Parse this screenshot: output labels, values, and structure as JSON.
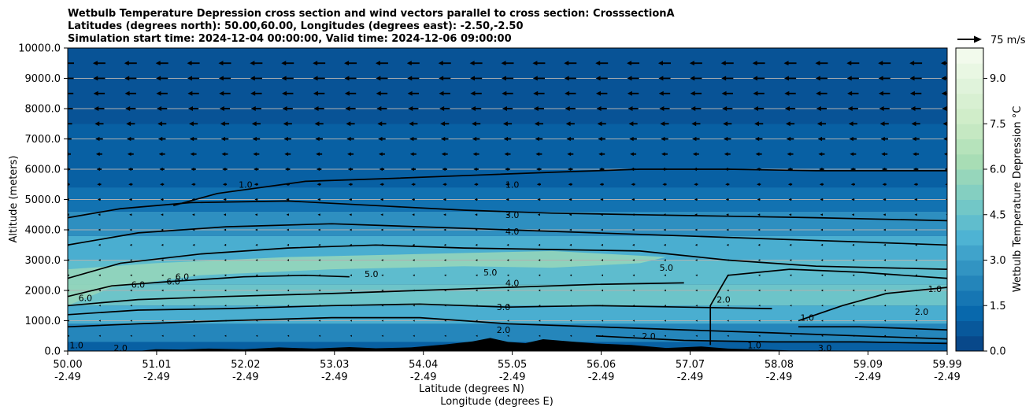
{
  "chart_data": {
    "type": "contour",
    "title_lines": [
      "Wetbulb Temperature Depression cross section and wind vectors parallel to cross section: CrosssectionA",
      "Latitudes (degrees north): 50.00,60.00, Longitudes (degrees east): -2.50,-2.50",
      "Simulation start time: 2024-12-04 00:00:00, Valid time: 2024-12-06 09:00:00"
    ],
    "xlabel_lat": "Latitude (degrees N)",
    "xlabel_lon": "Longitude (degrees E)",
    "ylabel": "Altitude (meters)",
    "xlim": [
      50.0,
      59.99
    ],
    "ylim": [
      0,
      10000
    ],
    "x_ticks": [
      {
        "lat": "50.00",
        "lon": "-2.49",
        "value": 50.0
      },
      {
        "lat": "51.01",
        "lon": "-2.49",
        "value": 51.01
      },
      {
        "lat": "52.02",
        "lon": "-2.49",
        "value": 52.02
      },
      {
        "lat": "53.03",
        "lon": "-2.49",
        "value": 53.03
      },
      {
        "lat": "54.04",
        "lon": "-2.49",
        "value": 54.04
      },
      {
        "lat": "55.05",
        "lon": "-2.49",
        "value": 55.05
      },
      {
        "lat": "56.06",
        "lon": "-2.49",
        "value": 56.06
      },
      {
        "lat": "57.07",
        "lon": "-2.49",
        "value": 57.07
      },
      {
        "lat": "58.08",
        "lon": "-2.49",
        "value": 58.08
      },
      {
        "lat": "59.09",
        "lon": "-2.49",
        "value": 59.09
      },
      {
        "lat": "59.99",
        "lon": "-2.49",
        "value": 59.99
      }
    ],
    "y_ticks": [
      {
        "label": "0.0",
        "value": 0
      },
      {
        "label": "1000.0",
        "value": 1000
      },
      {
        "label": "2000.0",
        "value": 2000
      },
      {
        "label": "3000.0",
        "value": 3000
      },
      {
        "label": "4000.0",
        "value": 4000
      },
      {
        "label": "5000.0",
        "value": 5000
      },
      {
        "label": "6000.0",
        "value": 6000
      },
      {
        "label": "7000.0",
        "value": 7000
      },
      {
        "label": "8000.0",
        "value": 8000
      },
      {
        "label": "9000.0",
        "value": 9000
      },
      {
        "label": "10000.0",
        "value": 10000
      }
    ],
    "grid": "horizontal",
    "colorbar": {
      "label": "Wetbulb Temperature Depression °C",
      "min": 0.0,
      "max": 10.0,
      "tick_labels": [
        "0.0",
        "1.5",
        "3.0",
        "4.5",
        "6.0",
        "7.5",
        "9.0"
      ],
      "tick_values": [
        0.0,
        1.5,
        3.0,
        4.5,
        6.0,
        7.5,
        9.0
      ],
      "colormap": "GnBu_r",
      "color_stops": [
        "#084081",
        "#0868ac",
        "#2b8cbe",
        "#4eb3d3",
        "#7bccc4",
        "#a8ddb5",
        "#ccebc5",
        "#e0f3db",
        "#f7fcf0"
      ]
    },
    "wind_key": {
      "label": "75 m/s",
      "value": 75
    },
    "wind_direction": "toward lower latitude (southward, parallel to section)",
    "wind_rows": [
      {
        "altitude": 9500,
        "speed": 40
      },
      {
        "altitude": 9000,
        "speed": 38
      },
      {
        "altitude": 8500,
        "speed": 36
      },
      {
        "altitude": 8000,
        "speed": 33
      },
      {
        "altitude": 7500,
        "speed": 28
      },
      {
        "altitude": 7000,
        "speed": 24
      },
      {
        "altitude": 6500,
        "speed": 20
      },
      {
        "altitude": 6000,
        "speed": 16
      },
      {
        "altitude": 5500,
        "speed": 13
      },
      {
        "altitude": 5000,
        "speed": 10
      },
      {
        "altitude": 4500,
        "speed": 8
      },
      {
        "altitude": 4000,
        "speed": 6
      },
      {
        "altitude": 3500,
        "speed": 5
      },
      {
        "altitude": 3000,
        "speed": 4
      },
      {
        "altitude": 2500,
        "speed": 3
      },
      {
        "altitude": 2000,
        "speed": 3
      },
      {
        "altitude": 1500,
        "speed": 2
      },
      {
        "altitude": 1000,
        "speed": 2
      },
      {
        "altitude": 500,
        "speed": 2
      }
    ],
    "background_bands": [
      {
        "z0": 0,
        "z1": 300,
        "value": 1.0
      },
      {
        "z0": 300,
        "z1": 900,
        "value": 2.3
      },
      {
        "z0": 900,
        "z1": 1500,
        "value": 3.6
      },
      {
        "z0": 1500,
        "z1": 2200,
        "value": 4.6
      },
      {
        "z0": 2200,
        "z1": 3000,
        "value": 4.2
      },
      {
        "z0": 3000,
        "z1": 3800,
        "value": 3.6
      },
      {
        "z0": 3800,
        "z1": 4600,
        "value": 2.6
      },
      {
        "z0": 4600,
        "z1": 5400,
        "value": 1.6
      },
      {
        "z0": 5400,
        "z1": 7500,
        "value": 1.0
      },
      {
        "z0": 7500,
        "z1": 10000,
        "value": 0.6
      }
    ],
    "moist_region": {
      "value": 5.8,
      "points": [
        [
          50.0,
          1500
        ],
        [
          50.5,
          2100
        ],
        [
          51.5,
          2500
        ],
        [
          53.0,
          2700
        ],
        [
          54.5,
          2800
        ],
        [
          55.5,
          2750
        ],
        [
          56.5,
          2900
        ],
        [
          56.8,
          3100
        ],
        [
          55.5,
          3300
        ],
        [
          54.0,
          3200
        ],
        [
          52.5,
          3100
        ],
        [
          51.0,
          2900
        ],
        [
          50.0,
          2700
        ]
      ]
    },
    "terrain": {
      "points": [
        [
          50.0,
          0
        ],
        [
          50.8,
          0
        ],
        [
          51.0,
          60
        ],
        [
          51.3,
          50
        ],
        [
          51.6,
          80
        ],
        [
          52.0,
          60
        ],
        [
          52.4,
          120
        ],
        [
          52.8,
          80
        ],
        [
          53.2,
          130
        ],
        [
          53.5,
          90
        ],
        [
          53.9,
          120
        ],
        [
          54.3,
          220
        ],
        [
          54.6,
          320
        ],
        [
          54.8,
          430
        ],
        [
          55.0,
          300
        ],
        [
          55.2,
          260
        ],
        [
          55.4,
          390
        ],
        [
          55.7,
          320
        ],
        [
          56.0,
          250
        ],
        [
          56.4,
          200
        ],
        [
          56.8,
          100
        ],
        [
          57.2,
          150
        ],
        [
          57.5,
          80
        ],
        [
          57.9,
          50
        ],
        [
          58.2,
          20
        ],
        [
          59.99,
          0
        ]
      ]
    },
    "contours": [
      {
        "level": "1.0",
        "points": [
          [
            51.2,
            4800
          ],
          [
            51.7,
            5200
          ],
          [
            52.7,
            5600
          ],
          [
            53.7,
            5700
          ],
          [
            54.6,
            5800
          ],
          [
            55.5,
            5900
          ],
          [
            56.5,
            6000
          ],
          [
            57.5,
            6000
          ],
          [
            58.5,
            5950
          ],
          [
            59.99,
            5950
          ]
        ]
      },
      {
        "level": "3.0",
        "points": [
          [
            50.0,
            4400
          ],
          [
            50.6,
            4700
          ],
          [
            51.4,
            4900
          ],
          [
            52.5,
            4950
          ],
          [
            53.5,
            4800
          ],
          [
            54.5,
            4650
          ],
          [
            55.5,
            4550
          ],
          [
            56.5,
            4500
          ],
          [
            57.5,
            4450
          ],
          [
            58.5,
            4400
          ],
          [
            59.99,
            4300
          ]
        ]
      },
      {
        "level": "4.0",
        "points": [
          [
            50.0,
            3500
          ],
          [
            50.8,
            3900
          ],
          [
            51.8,
            4100
          ],
          [
            53.0,
            4200
          ],
          [
            54.0,
            4100
          ],
          [
            55.0,
            4000
          ],
          [
            56.0,
            3900
          ],
          [
            57.0,
            3800
          ],
          [
            58.0,
            3700
          ],
          [
            59.0,
            3600
          ],
          [
            59.99,
            3500
          ]
        ]
      },
      {
        "level": "5.0",
        "points": [
          [
            50.0,
            2400
          ],
          [
            50.6,
            2900
          ],
          [
            51.5,
            3200
          ],
          [
            52.5,
            3400
          ],
          [
            53.5,
            3500
          ],
          [
            54.5,
            3400
          ],
          [
            55.5,
            3350
          ],
          [
            56.5,
            3300
          ],
          [
            57.5,
            3000
          ],
          [
            58.5,
            2800
          ],
          [
            59.99,
            2700
          ]
        ]
      },
      {
        "level": "6.0",
        "points": [
          [
            50.0,
            1800
          ],
          [
            50.5,
            2150
          ],
          [
            51.2,
            2300
          ],
          [
            52.0,
            2450
          ],
          [
            52.7,
            2500
          ],
          [
            53.2,
            2450
          ]
        ]
      },
      {
        "level": "4.0",
        "points": [
          [
            50.0,
            1500
          ],
          [
            50.8,
            1700
          ],
          [
            51.8,
            1800
          ],
          [
            53.0,
            1900
          ],
          [
            54.0,
            2000
          ],
          [
            55.0,
            2100
          ],
          [
            56.0,
            2200
          ],
          [
            57.0,
            2250
          ]
        ]
      },
      {
        "level": "3.0",
        "points": [
          [
            50.0,
            1200
          ],
          [
            50.8,
            1350
          ],
          [
            51.8,
            1400
          ],
          [
            53.0,
            1500
          ],
          [
            54.0,
            1550
          ],
          [
            55.0,
            1450
          ],
          [
            56.0,
            1500
          ],
          [
            57.0,
            1450
          ],
          [
            58.0,
            1400
          ]
        ]
      },
      {
        "level": "2.0",
        "points": [
          [
            50.0,
            800
          ],
          [
            50.8,
            900
          ],
          [
            51.8,
            1000
          ],
          [
            53.0,
            1100
          ],
          [
            54.0,
            1100
          ],
          [
            55.0,
            900
          ],
          [
            56.0,
            800
          ],
          [
            57.0,
            700
          ],
          [
            58.0,
            600
          ],
          [
            59.0,
            500
          ],
          [
            59.99,
            400
          ]
        ]
      },
      {
        "level": "1.0",
        "points": [
          [
            56.0,
            500
          ],
          [
            57.0,
            350
          ],
          [
            58.0,
            300
          ],
          [
            59.0,
            300
          ],
          [
            59.99,
            250
          ]
        ]
      },
      {
        "level": "2.0",
        "points": [
          [
            57.3,
            200
          ],
          [
            57.3,
            1500
          ],
          [
            57.5,
            2500
          ],
          [
            58.2,
            2700
          ],
          [
            59.0,
            2600
          ],
          [
            59.99,
            2400
          ]
        ]
      },
      {
        "level": "1.0",
        "points": [
          [
            58.3,
            1000
          ],
          [
            58.8,
            1500
          ],
          [
            59.3,
            1900
          ],
          [
            59.99,
            2100
          ]
        ]
      },
      {
        "level": "3.0",
        "points": [
          [
            58.3,
            800
          ],
          [
            59.0,
            800
          ],
          [
            59.99,
            700
          ]
        ]
      }
    ],
    "contour_labels": [
      {
        "text": "1.0",
        "x": 55.05,
        "y": 5500
      },
      {
        "text": "3.0",
        "x": 55.05,
        "y": 4500
      },
      {
        "text": "4.0",
        "x": 55.05,
        "y": 3950
      },
      {
        "text": "5.0",
        "x": 53.45,
        "y": 2550
      },
      {
        "text": "5.0",
        "x": 54.8,
        "y": 2600
      },
      {
        "text": "5.0",
        "x": 56.8,
        "y": 2750
      },
      {
        "text": "6.0",
        "x": 50.2,
        "y": 1750
      },
      {
        "text": "6.0",
        "x": 50.8,
        "y": 2200
      },
      {
        "text": "6.0",
        "x": 51.2,
        "y": 2300
      },
      {
        "text": "6.0",
        "x": 51.3,
        "y": 2450
      },
      {
        "text": "4.0",
        "x": 55.05,
        "y": 2250
      },
      {
        "text": "3.0",
        "x": 54.95,
        "y": 1450
      },
      {
        "text": "2.0",
        "x": 54.95,
        "y": 700
      },
      {
        "text": "1.0",
        "x": 52.02,
        "y": 5500
      },
      {
        "text": "2.0",
        "x": 57.45,
        "y": 1700
      },
      {
        "text": "1.0",
        "x": 59.85,
        "y": 2050
      },
      {
        "text": "2.0",
        "x": 59.7,
        "y": 1300
      },
      {
        "text": "1.0",
        "x": 58.4,
        "y": 1100
      },
      {
        "text": "2.0",
        "x": 56.6,
        "y": 500
      },
      {
        "text": "1.0",
        "x": 57.8,
        "y": 200
      },
      {
        "text": "3.0",
        "x": 58.6,
        "y": 100
      },
      {
        "text": "2.0",
        "x": 50.6,
        "y": 100
      },
      {
        "text": "1.0",
        "x": 50.1,
        "y": 200
      }
    ]
  }
}
